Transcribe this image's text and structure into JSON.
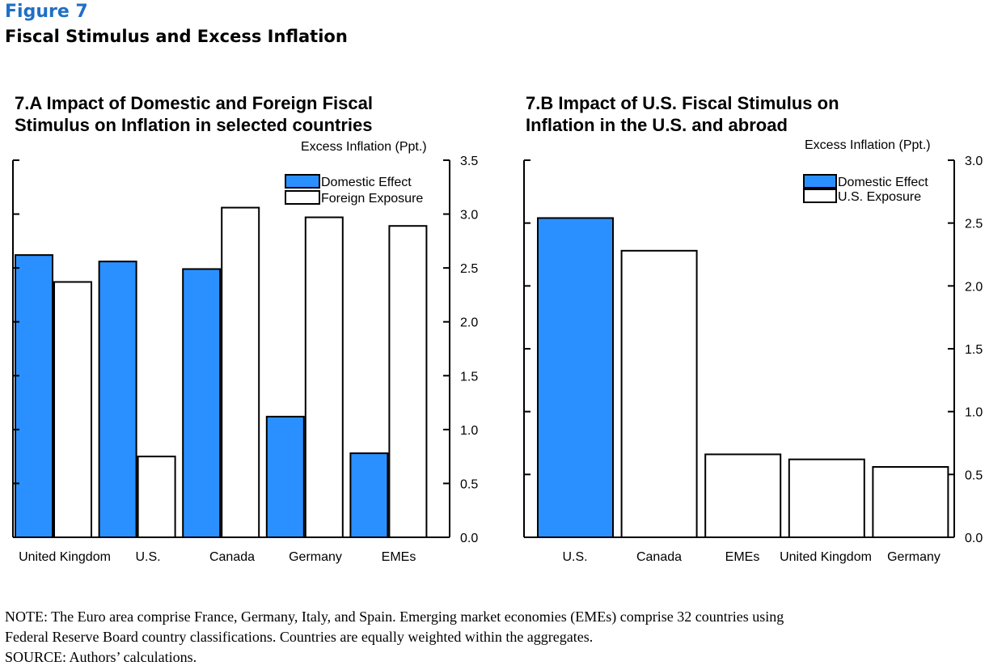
{
  "figure": {
    "label": "Figure 7",
    "title": "Fiscal Stimulus and Excess Inflation"
  },
  "colors": {
    "domestic": "#2b90ff",
    "foreign": "#ffffff",
    "stroke": "#000000"
  },
  "chart_data": [
    {
      "type": "bar",
      "title_line1": "7.A Impact of Domestic and Foreign Fiscal",
      "title_line2": "Stimulus on Inflation in selected countries",
      "ylabel": "Excess Inflation (Ppt.)",
      "ylim": [
        0,
        3.5
      ],
      "yticks": [
        "0.0",
        "0.5",
        "1.0",
        "1.5",
        "2.0",
        "2.5",
        "3.0",
        "3.5"
      ],
      "categories": [
        "United Kingdom",
        "U.S.",
        "Canada",
        "Germany",
        "EMEs"
      ],
      "series": [
        {
          "name": "Domestic Effect",
          "values": [
            2.62,
            2.56,
            2.49,
            1.12,
            0.78
          ]
        },
        {
          "name": "Foreign Exposure",
          "values": [
            2.37,
            0.75,
            3.06,
            2.97,
            2.89
          ]
        }
      ],
      "legend": "top-right"
    },
    {
      "type": "bar",
      "title_line1": "7.B Impact of U.S. Fiscal Stimulus on",
      "title_line2": "Inflation in the U.S. and abroad",
      "ylabel": "Excess Inflation (Ppt.)",
      "ylim": [
        0,
        3.0
      ],
      "yticks": [
        "0.0",
        "0.5",
        "1.0",
        "1.5",
        "2.0",
        "2.5",
        "3.0"
      ],
      "categories": [
        "U.S.",
        "Canada",
        "EMEs",
        "United Kingdom",
        "Germany"
      ],
      "series": [
        {
          "name": "Domestic Effect",
          "values": [
            2.54,
            null,
            null,
            null,
            null
          ]
        },
        {
          "name": "U.S. Exposure",
          "values": [
            null,
            2.28,
            0.66,
            0.62,
            0.56
          ]
        }
      ],
      "legend": "top-right"
    }
  ],
  "notes": {
    "line1": "NOTE: The Euro area comprise France, Germany, Italy, and Spain. Emerging market economies (EMEs) comprise 32 countries using",
    "line2": "Federal Reserve Board country classifications. Countries are equally weighted within the aggregates.",
    "line3": "SOURCE: Authors’ calculations."
  }
}
